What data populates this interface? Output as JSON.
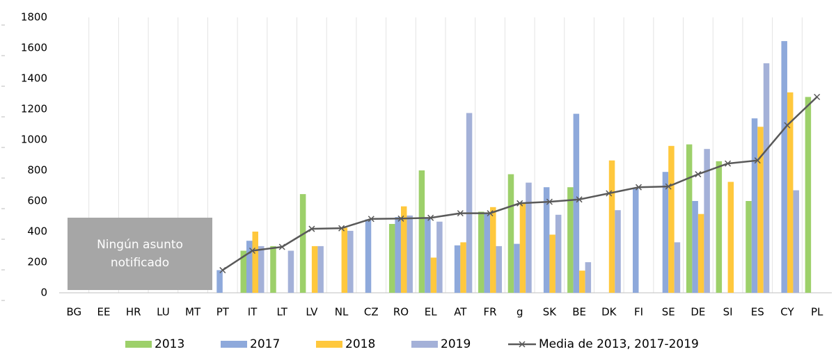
{
  "chart_data": {
    "type": "bar",
    "categories": [
      "BG",
      "EE",
      "HR",
      "LU",
      "MT",
      "PT",
      "IT",
      "LT",
      "LV",
      "NL",
      "CZ",
      "RO",
      "EL",
      "AT",
      "FR",
      "g",
      "SK",
      "BE",
      "DK",
      "FI",
      "SE",
      "DE",
      "SI",
      "ES",
      "CY",
      "PL"
    ],
    "series": [
      {
        "name": "2013",
        "color": "#9dd06a",
        "values": [
          null,
          null,
          null,
          null,
          null,
          null,
          275,
          305,
          645,
          null,
          null,
          450,
          800,
          null,
          530,
          775,
          null,
          690,
          null,
          null,
          null,
          970,
          860,
          600,
          null,
          1280
        ]
      },
      {
        "name": "2017",
        "color": "#8ea9db",
        "values": [
          null,
          null,
          null,
          null,
          null,
          148,
          340,
          null,
          null,
          null,
          480,
          495,
          490,
          310,
          520,
          320,
          690,
          1170,
          null,
          685,
          790,
          600,
          null,
          1140,
          1645,
          null
        ]
      },
      {
        "name": "2018",
        "color": "#ffc83d",
        "values": [
          null,
          null,
          null,
          null,
          null,
          null,
          400,
          null,
          305,
          425,
          null,
          565,
          230,
          330,
          560,
          590,
          380,
          145,
          865,
          null,
          960,
          515,
          725,
          1085,
          1310,
          null
        ]
      },
      {
        "name": "2019",
        "color": "#a4b1d8",
        "values": [
          null,
          null,
          null,
          null,
          null,
          null,
          305,
          275,
          305,
          405,
          null,
          505,
          465,
          1175,
          305,
          720,
          510,
          200,
          540,
          null,
          330,
          940,
          null,
          1500,
          670,
          null
        ]
      }
    ],
    "line_series": {
      "name": "Media de 2013, 2017-2019",
      "color": "#595959",
      "values": [
        null,
        null,
        null,
        null,
        null,
        148,
        275,
        300,
        418,
        422,
        483,
        485,
        490,
        520,
        520,
        585,
        595,
        610,
        650,
        690,
        695,
        775,
        845,
        865,
        1095,
        1280
      ]
    },
    "annotation": "Ningún asunto notificado",
    "ylim": [
      0,
      1800
    ],
    "yticks": [
      0,
      200,
      400,
      600,
      800,
      1000,
      1200,
      1400,
      1600,
      1800
    ]
  }
}
